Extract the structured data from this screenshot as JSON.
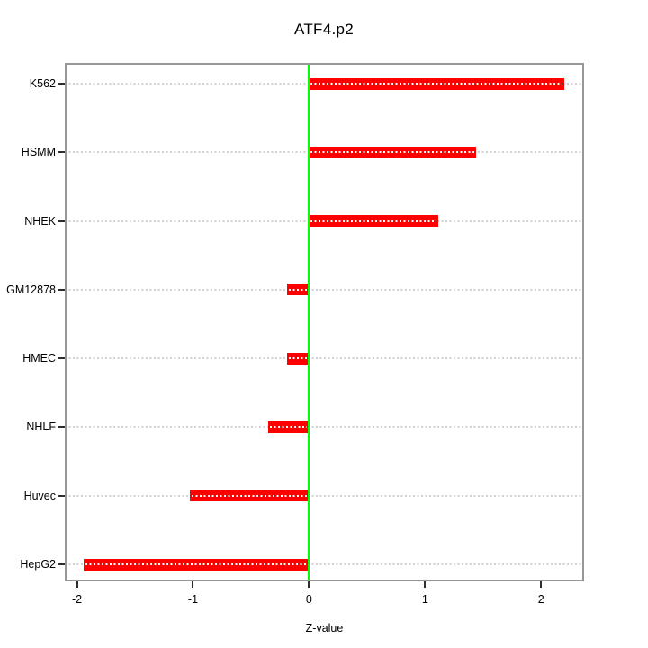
{
  "figure": {
    "background": "#ffffff"
  },
  "chart_data": {
    "type": "bar",
    "orientation": "horizontal",
    "title": "ATF4.p2",
    "xlabel": "Z-value",
    "ylabel": "",
    "categories": [
      "K562",
      "HSMM",
      "NHEK",
      "GM12878",
      "HMEC",
      "NHLF",
      "Huvec",
      "HepG2"
    ],
    "values": [
      2.2,
      1.44,
      1.11,
      -0.19,
      -0.19,
      -0.35,
      -1.03,
      -1.94
    ],
    "x_ticks": [
      "-2",
      "-1",
      "0",
      "1",
      "2"
    ],
    "x_tick_values": [
      -2,
      -1,
      0,
      1,
      2
    ],
    "xlim": [
      -2.105,
      2.37
    ],
    "reference_line_x": 0,
    "grid": "dotted-horizontal",
    "legend": "none",
    "colors": {
      "bar": "#ff0000",
      "bar_inner_dots": "#ffffff",
      "reference_line": "#00ff00",
      "gridline": "#d2d2d2",
      "box_border": "#979797",
      "tick": "#2e2e2e",
      "text": "#000000"
    }
  }
}
